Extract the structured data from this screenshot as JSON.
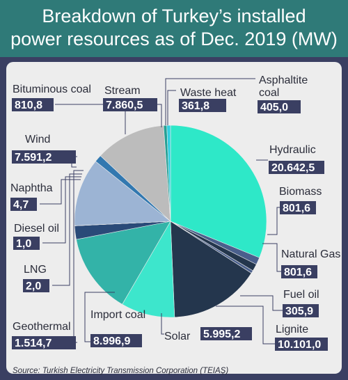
{
  "title": {
    "line1": "Breakdown of Turkey’s installed",
    "line2": "power resources as of Dec. 2019 (MW)"
  },
  "source": "Source: Turkish Electricity Transmission Corporation (TEIAŞ)",
  "chart_data": {
    "type": "pie",
    "title": "Breakdown of Turkey’s installed power resources as of Dec. 2019 (MW)",
    "unit": "MW",
    "slices": [
      {
        "name": "Hydraulic",
        "label": "20.642,5",
        "value": 20642.5,
        "color": "#2ee8c8"
      },
      {
        "name": "Biomass",
        "label": "801,6",
        "value": 801.6,
        "color": "#4a5f8c"
      },
      {
        "name": "Natural Gas",
        "label": "801,6",
        "value": 801.6,
        "color": "#24364d"
      },
      {
        "name": "Fuel oil",
        "label": "305,9",
        "value": 305.9,
        "color": "#4a5f8c"
      },
      {
        "name": "Lignite",
        "label": "10.101,0",
        "value": 10101.0,
        "color": "#24364d"
      },
      {
        "name": "Solar",
        "label": "5.995,2",
        "value": 5995.2,
        "color": "#3de6cc"
      },
      {
        "name": "Import coal",
        "label": "8.996,9",
        "value": 8996.9,
        "color": "#33b3a8"
      },
      {
        "name": "Geothermal",
        "label": "1.514,7",
        "value": 1514.7,
        "color": "#2a4a78"
      },
      {
        "name": "LNG",
        "label": "2,0",
        "value": 2.0,
        "color": "#5a6a85"
      },
      {
        "name": "Diesel oil",
        "label": "1,0",
        "value": 1.0,
        "color": "#5a6a85"
      },
      {
        "name": "Naphtha",
        "label": "4,7",
        "value": 4.7,
        "color": "#5a6a85"
      },
      {
        "name": "Wind",
        "label": "7.591,2",
        "value": 7591.2,
        "color": "#9cb4d4"
      },
      {
        "name": "Bituminous coal",
        "label": "810,8",
        "value": 810.8,
        "color": "#3278b0"
      },
      {
        "name": "Stream",
        "label": "7.860,5",
        "value": 7860.5,
        "color": "#bcbcbc"
      },
      {
        "name": "Waste heat",
        "label": "361,8",
        "value": 361.8,
        "color": "#24a094"
      },
      {
        "name": "Asphaltite coal",
        "label": "405,0",
        "value": 405.0,
        "color": "#2fd0e0"
      }
    ]
  }
}
